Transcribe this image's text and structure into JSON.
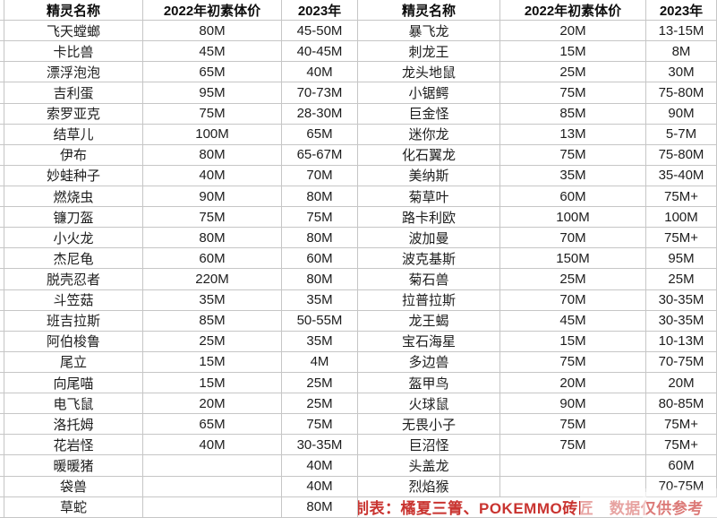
{
  "colors": {
    "grid_line": "#c6c6c6",
    "body_text": "#1d1d1d",
    "credit_red": "#c93430",
    "background": "#ffffff"
  },
  "table": {
    "header": {
      "name": "精灵名称",
      "price2022": "2022年初素体价",
      "price2023": "2023年"
    },
    "left_rows": [
      {
        "name": "飞天螳螂",
        "p2022": "80M",
        "p2023": "45-50M"
      },
      {
        "name": "卡比兽",
        "p2022": "45M",
        "p2023": "40-45M"
      },
      {
        "name": "漂浮泡泡",
        "p2022": "65M",
        "p2023": "40M"
      },
      {
        "name": "吉利蛋",
        "p2022": "95M",
        "p2023": "70-73M"
      },
      {
        "name": "索罗亚克",
        "p2022": "75M",
        "p2023": "28-30M"
      },
      {
        "name": "结草儿",
        "p2022": "100M",
        "p2023": "65M"
      },
      {
        "name": "伊布",
        "p2022": "80M",
        "p2023": "65-67M"
      },
      {
        "name": "妙蛙种子",
        "p2022": "40M",
        "p2023": "70M"
      },
      {
        "name": "燃烧虫",
        "p2022": "90M",
        "p2023": "80M"
      },
      {
        "name": "镰刀盔",
        "p2022": "75M",
        "p2023": "75M"
      },
      {
        "name": "小火龙",
        "p2022": "80M",
        "p2023": "80M"
      },
      {
        "name": "杰尼龟",
        "p2022": "60M",
        "p2023": "60M"
      },
      {
        "name": "脱壳忍者",
        "p2022": "220M",
        "p2023": "80M"
      },
      {
        "name": "斗笠菇",
        "p2022": "35M",
        "p2023": "35M"
      },
      {
        "name": "班吉拉斯",
        "p2022": "85M",
        "p2023": "50-55M"
      },
      {
        "name": "阿伯梭鲁",
        "p2022": "25M",
        "p2023": "35M"
      },
      {
        "name": "尾立",
        "p2022": "15M",
        "p2023": "4M"
      },
      {
        "name": "向尾喵",
        "p2022": "15M",
        "p2023": "25M"
      },
      {
        "name": "电飞鼠",
        "p2022": "20M",
        "p2023": "25M"
      },
      {
        "name": "洛托姆",
        "p2022": "65M",
        "p2023": "75M"
      },
      {
        "name": "花岩怪",
        "p2022": "40M",
        "p2023": "30-35M"
      },
      {
        "name": "暖暖猪",
        "p2022": "",
        "p2023": "40M"
      },
      {
        "name": "袋兽",
        "p2022": "",
        "p2023": "40M"
      },
      {
        "name": "草蛇",
        "p2022": "",
        "p2023": "80M"
      }
    ],
    "right_rows": [
      {
        "name": "暴飞龙",
        "p2022": "20M",
        "p2023": "13-15M"
      },
      {
        "name": "刺龙王",
        "p2022": "15M",
        "p2023": "8M"
      },
      {
        "name": "龙头地鼠",
        "p2022": "25M",
        "p2023": "30M"
      },
      {
        "name": "小锯鳄",
        "p2022": "75M",
        "p2023": "75-80M"
      },
      {
        "name": "巨金怪",
        "p2022": "85M",
        "p2023": "90M"
      },
      {
        "name": "迷你龙",
        "p2022": "13M",
        "p2023": "5-7M"
      },
      {
        "name": "化石翼龙",
        "p2022": "75M",
        "p2023": "75-80M"
      },
      {
        "name": "美纳斯",
        "p2022": "35M",
        "p2023": "35-40M"
      },
      {
        "name": "菊草叶",
        "p2022": "60M",
        "p2023": "75M+"
      },
      {
        "name": "路卡利欧",
        "p2022": "100M",
        "p2023": "100M"
      },
      {
        "name": "波加曼",
        "p2022": "70M",
        "p2023": "75M+"
      },
      {
        "name": "波克基斯",
        "p2022": "150M",
        "p2023": "95M"
      },
      {
        "name": "菊石兽",
        "p2022": "25M",
        "p2023": "25M"
      },
      {
        "name": "拉普拉斯",
        "p2022": "70M",
        "p2023": "30-35M"
      },
      {
        "name": "龙王蝎",
        "p2022": "45M",
        "p2023": "30-35M"
      },
      {
        "name": "宝石海星",
        "p2022": "15M",
        "p2023": "10-13M"
      },
      {
        "name": "多边兽",
        "p2022": "75M",
        "p2023": "70-75M"
      },
      {
        "name": "盔甲鸟",
        "p2022": "20M",
        "p2023": "20M"
      },
      {
        "name": "火球鼠",
        "p2022": "90M",
        "p2023": "80-85M"
      },
      {
        "name": "无畏小子",
        "p2022": "75M",
        "p2023": "75M+"
      },
      {
        "name": "巨沼怪",
        "p2022": "75M",
        "p2023": "75M+"
      },
      {
        "name": "头盖龙",
        "p2022": "",
        "p2023": "60M"
      },
      {
        "name": "烈焰猴",
        "p2022": "",
        "p2023": "70-75M"
      }
    ]
  },
  "footer": {
    "text": "制表：橘夏三箐、POKEMMO砖匠　数据仅供参考"
  }
}
